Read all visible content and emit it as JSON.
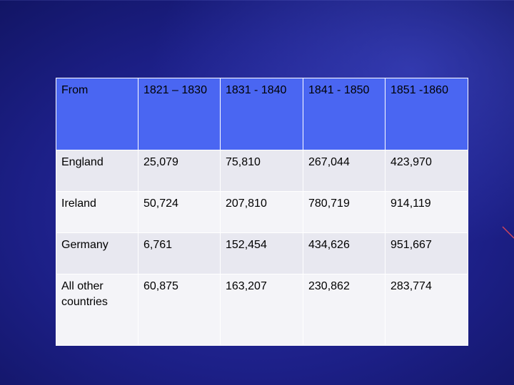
{
  "table": {
    "header": [
      "From",
      "1821 – 1830",
      "1831 - 1840",
      "1841 - 1850",
      "1851 -1860"
    ],
    "rows": [
      [
        "England",
        "25,079",
        "75,810",
        "267,044",
        "423,970"
      ],
      [
        "Ireland",
        "50,724",
        "207,810",
        "780,719",
        "914,119"
      ],
      [
        "Germany",
        "6,761",
        "152,454",
        "434,626",
        "951,667"
      ],
      [
        "All other countries",
        "60,875",
        "163,207",
        "230,862",
        "283,774"
      ]
    ]
  },
  "colors": {
    "header_bg": "#4a66f2",
    "row_bg_a": "#e8e8f0",
    "row_bg_b": "#f4f4f8",
    "slide_bg": "#1c1f86"
  }
}
